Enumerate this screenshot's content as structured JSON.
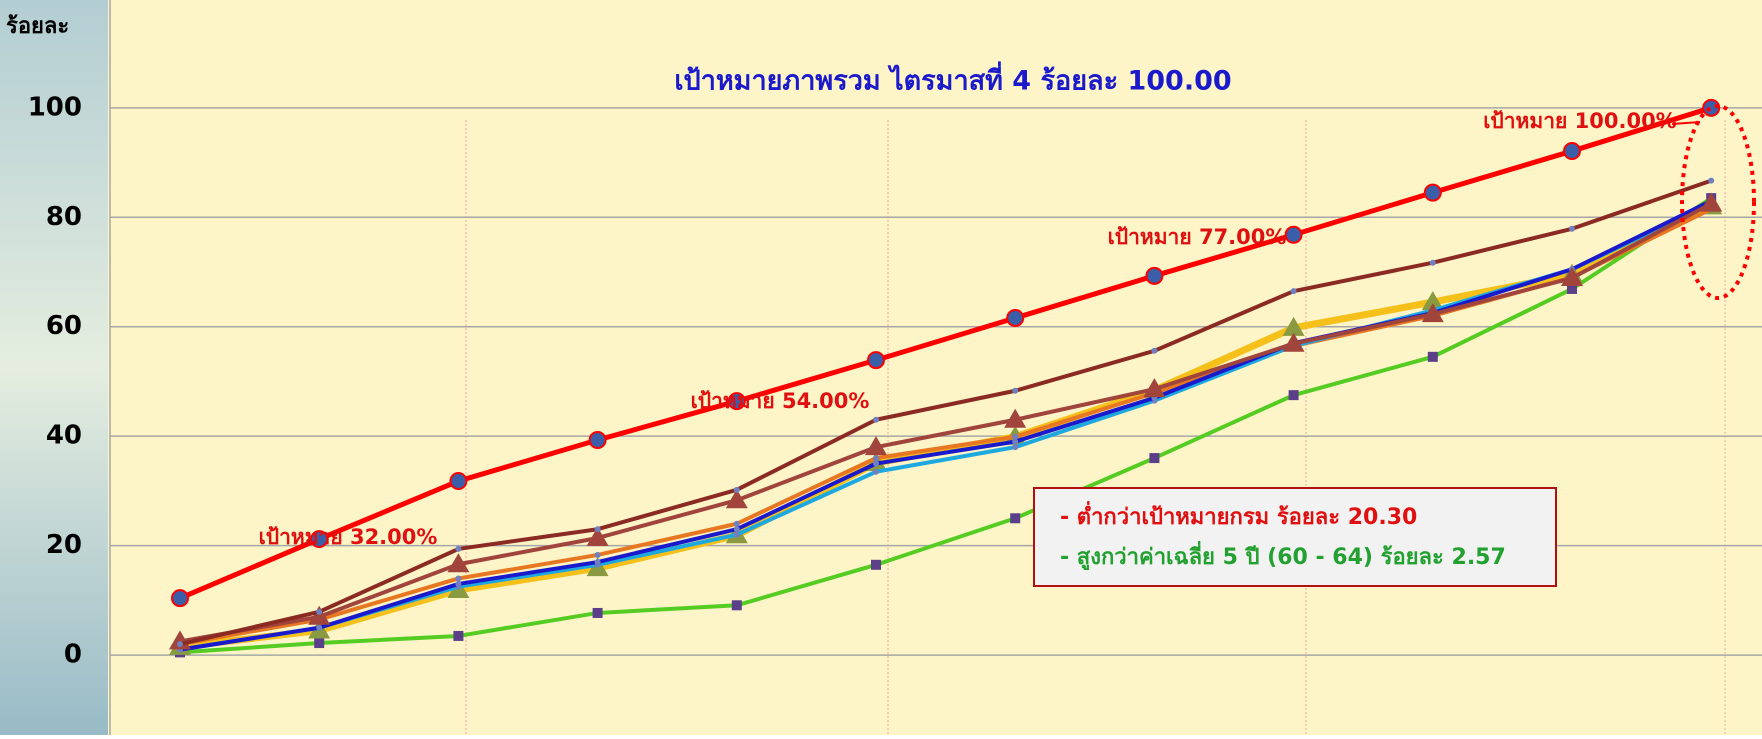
{
  "chart_data": {
    "type": "line",
    "title": "เป้าหมายภาพรวม ไตรมาสที่ 4 ร้อยละ 100.00",
    "y_label": "ร้อยละ",
    "categories": [
      null,
      null,
      null,
      null,
      null,
      null,
      null,
      null,
      null,
      null,
      null,
      null
    ],
    "ylim": [
      -14.6,
      119.7
    ],
    "yticks": [
      0,
      20,
      40,
      60,
      80,
      100
    ],
    "grid": true,
    "series": [
      {
        "color": "#55cc22",
        "marker": "square",
        "values": [
          0.5,
          2.2,
          3.5,
          7.7,
          9.1,
          16.5,
          25,
          36,
          47.5,
          54.5,
          66.9,
          83.5
        ]
      },
      {
        "color": "#f5c01a",
        "marker": "triangle",
        "values": [
          1.5,
          4.5,
          11.9,
          15.9,
          21.9,
          35.1,
          39.9,
          48.4,
          59.8,
          64.5,
          69.5,
          82
        ]
      },
      {
        "color": "#e87722",
        "marker": "none",
        "values": [
          2,
          6.5,
          14,
          18.3,
          24,
          36,
          39.9,
          47.9,
          56.5,
          62,
          69,
          81.5
        ]
      },
      {
        "color": "#1ea8e0",
        "marker": "none",
        "values": [
          1,
          5,
          12.5,
          16.5,
          22,
          33.5,
          38,
          46.5,
          56.5,
          63,
          70.5,
          82.5
        ]
      },
      {
        "color": "#1a1acc",
        "marker": "none",
        "values": [
          1,
          5,
          13,
          17,
          23,
          35,
          39,
          47,
          57,
          62.5,
          70.5,
          83
        ]
      },
      {
        "color": "#a0443c",
        "marker": "triangle",
        "values": [
          2.5,
          7,
          16.6,
          21.4,
          28.3,
          38,
          43,
          48.6,
          56.9,
          62.3,
          68.9,
          82.5
        ]
      },
      {
        "color": "#8b2a22",
        "marker": "none",
        "values": [
          2,
          7.9,
          19.4,
          23,
          30.2,
          43,
          48.3,
          55.6,
          66.5,
          71.7,
          77.9,
          86.7
        ]
      },
      {
        "color": "#ff0000",
        "marker": "circle",
        "values": [
          10.4,
          21.2,
          31.8,
          39.3,
          46.4,
          53.9,
          61.6,
          69.3,
          76.8,
          84.5,
          92.1,
          100
        ]
      }
    ],
    "annotations": [
      "เป้าหมาย 32.00%",
      "เป้าหมาย 54.00%",
      "เป้าหมาย 77.00%",
      "เป้าหมาย 100.00%"
    ],
    "note_lines": [
      "- ต่ำกว่าเป้าหมายกรม ร้อยละ 20.30",
      "- สูงกว่าค่าเฉลี่ย 5 ปี (60 - 64) ร้อยละ 2.57"
    ]
  }
}
